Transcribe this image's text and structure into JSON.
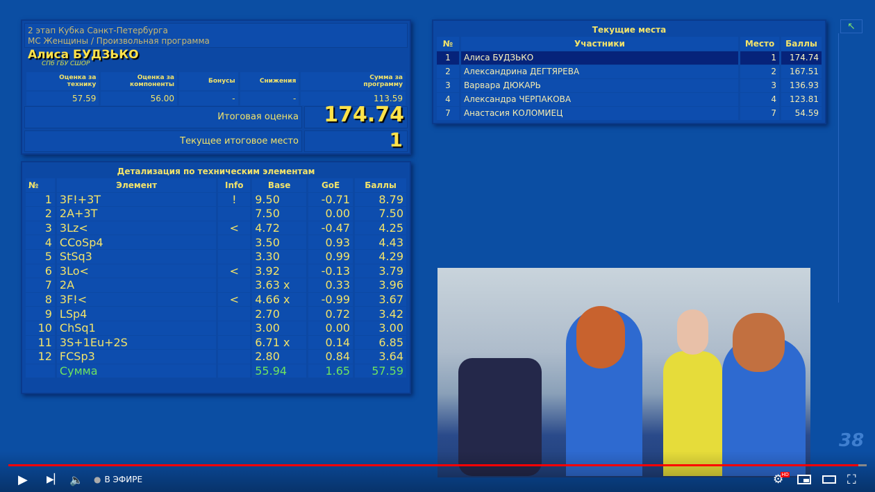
{
  "score_panel": {
    "event": "2 этап Кубка Санкт-Петербурга",
    "category": "МС Женщины / Произвольная программа",
    "skater": "Алиса БУДЗЬКО",
    "club": "СПб ГБУ СШОР",
    "headers": [
      "Оценка за технику",
      "Оценка за компоненты",
      "Бонусы",
      "Снижения",
      "Сумма за программу"
    ],
    "values": [
      "57.59",
      "56.00",
      "-",
      "-",
      "113.59"
    ],
    "total_label": "Итоговая оценка",
    "total": "174.74",
    "place_label": "Текущее итоговое место",
    "place": "1"
  },
  "elements": {
    "title": "Детализация по техническим элементам",
    "headers": [
      "№",
      "Элемент",
      "Info",
      "Base",
      "GoE",
      "Баллы"
    ],
    "rows": [
      [
        "1",
        "3F!+3T",
        "!",
        "9.50",
        "-0.71",
        "8.79"
      ],
      [
        "2",
        "2A+3T",
        "",
        "7.50",
        "0.00",
        "7.50"
      ],
      [
        "3",
        "3Lz<",
        "<",
        "4.72",
        "-0.47",
        "4.25"
      ],
      [
        "4",
        "CCoSp4",
        "",
        "3.50",
        "0.93",
        "4.43"
      ],
      [
        "5",
        "StSq3",
        "",
        "3.30",
        "0.99",
        "4.29"
      ],
      [
        "6",
        "3Lo<",
        "<",
        "3.92",
        "-0.13",
        "3.79"
      ],
      [
        "7",
        "2A",
        "",
        "3.63 x",
        "0.33",
        "3.96"
      ],
      [
        "8",
        "3F!<",
        "<",
        "4.66 x",
        "-0.99",
        "3.67"
      ],
      [
        "9",
        "LSp4",
        "",
        "2.70",
        "0.72",
        "3.42"
      ],
      [
        "10",
        "ChSq1",
        "",
        "3.00",
        "0.00",
        "3.00"
      ],
      [
        "11",
        "3S+1Eu+2S",
        "",
        "6.71 x",
        "0.14",
        "6.85"
      ],
      [
        "12",
        "FCSp3",
        "",
        "2.80",
        "0.84",
        "3.64"
      ]
    ],
    "sum": [
      "",
      "Сумма",
      "",
      "55.94",
      "1.65",
      "57.59"
    ]
  },
  "standings": {
    "title": "Текущие места",
    "headers": [
      "№",
      "Участники",
      "Место",
      "Баллы"
    ],
    "rows": [
      [
        "1",
        "Алиса БУДЗЬКО",
        "1",
        "174.74"
      ],
      [
        "2",
        "Александрина ДЕГТЯРЕВА",
        "2",
        "167.51"
      ],
      [
        "3",
        "Варвара ДЮКАРЬ",
        "3",
        "136.93"
      ],
      [
        "4",
        "Александра ЧЕРПАКОВА",
        "4",
        "123.81"
      ],
      [
        "7",
        "Анастасия КОЛОМИЕЦ",
        "7",
        "54.59"
      ]
    ]
  },
  "player": {
    "live_label": "В ЭФИРЕ",
    "progress": 0.99,
    "hd_badge": "HD",
    "accent": "#ff0000",
    "watermark": "38"
  }
}
